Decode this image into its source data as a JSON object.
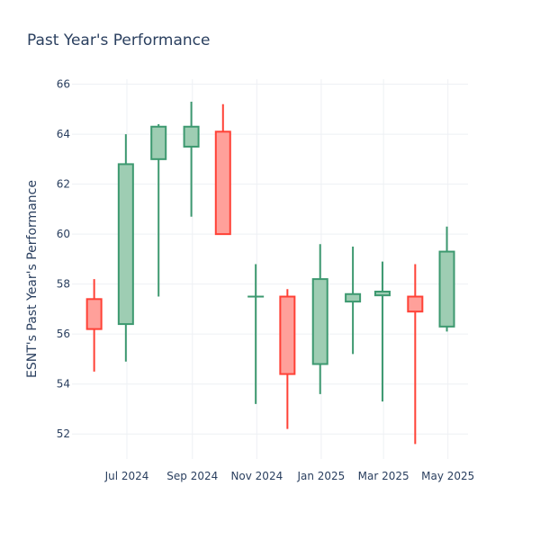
{
  "chart_data": {
    "type": "candlestick",
    "title": "Past Year's Performance",
    "xlabel": "",
    "ylabel": "ESNT's Past Year's Performance",
    "ylim": [
      51,
      66.2
    ],
    "yticks": [
      52,
      54,
      56,
      58,
      60,
      62,
      64,
      66
    ],
    "xlim": [
      "2024-05-10",
      "2025-05-20"
    ],
    "xticks": [
      {
        "date": "2024-07-01",
        "label": "Jul 2024"
      },
      {
        "date": "2024-09-01",
        "label": "Sep 2024"
      },
      {
        "date": "2024-11-01",
        "label": "Nov 2024"
      },
      {
        "date": "2025-01-01",
        "label": "Jan 2025"
      },
      {
        "date": "2025-03-01",
        "label": "Mar 2025"
      },
      {
        "date": "2025-05-01",
        "label": "May 2025"
      }
    ],
    "colors": {
      "up_line": "#3d9970",
      "up_fill": "#9ecdb3",
      "down_line": "#ff4136",
      "down_fill": "#ffa09a"
    },
    "candles": [
      {
        "date": "2024-05-31",
        "open": 57.4,
        "high": 58.2,
        "low": 54.5,
        "close": 56.2
      },
      {
        "date": "2024-06-30",
        "open": 56.4,
        "high": 64.0,
        "low": 54.9,
        "close": 62.8
      },
      {
        "date": "2024-07-31",
        "open": 63.0,
        "high": 64.4,
        "low": 57.5,
        "close": 64.3
      },
      {
        "date": "2024-08-31",
        "open": 63.5,
        "high": 65.3,
        "low": 60.7,
        "close": 64.3
      },
      {
        "date": "2024-09-30",
        "open": 64.1,
        "high": 65.2,
        "low": 60.0,
        "close": 60.0
      },
      {
        "date": "2024-10-31",
        "open": 57.5,
        "high": 58.8,
        "low": 53.2,
        "close": 57.5
      },
      {
        "date": "2024-11-30",
        "open": 57.5,
        "high": 57.8,
        "low": 52.2,
        "close": 54.4
      },
      {
        "date": "2024-12-31",
        "open": 54.8,
        "high": 59.6,
        "low": 53.6,
        "close": 58.2
      },
      {
        "date": "2025-01-31",
        "open": 57.3,
        "high": 59.5,
        "low": 55.2,
        "close": 57.6
      },
      {
        "date": "2025-02-28",
        "open": 57.55,
        "high": 58.9,
        "low": 53.3,
        "close": 57.7
      },
      {
        "date": "2025-03-31",
        "open": 57.5,
        "high": 58.8,
        "low": 51.6,
        "close": 56.9
      },
      {
        "date": "2025-04-30",
        "open": 56.3,
        "high": 60.3,
        "low": 56.1,
        "close": 59.3
      }
    ]
  }
}
